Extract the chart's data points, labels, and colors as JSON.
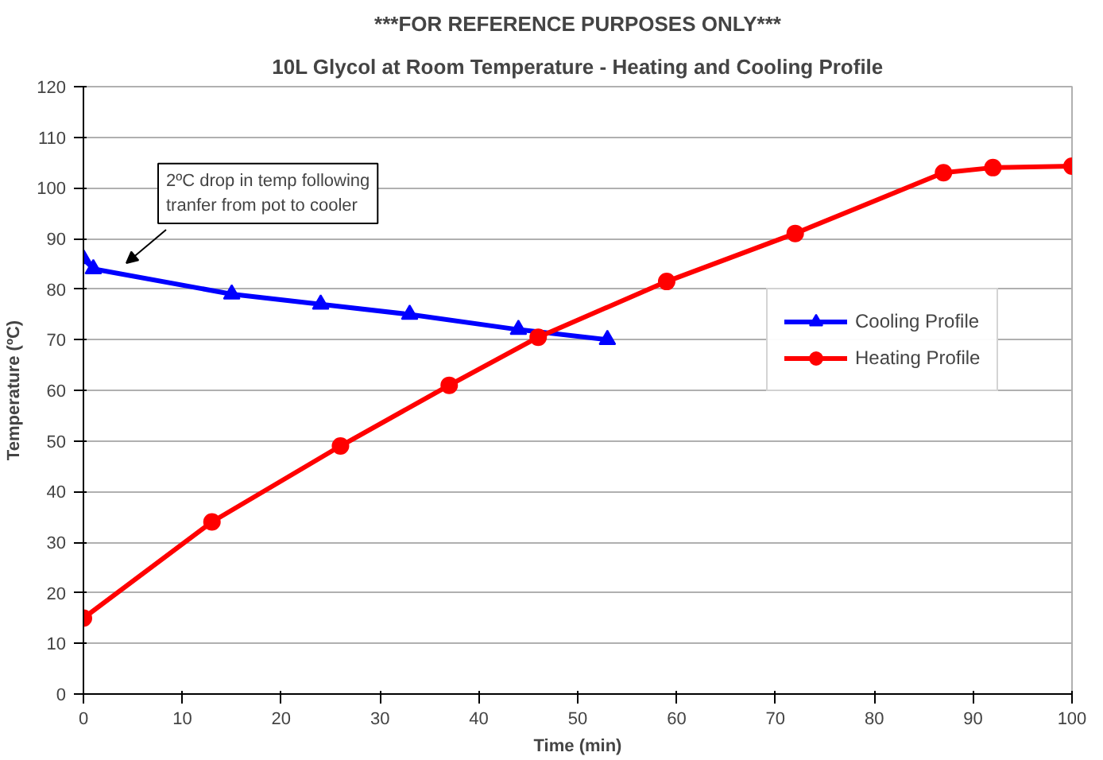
{
  "chart_data": {
    "type": "line",
    "title": "***FOR REFERENCE PURPOSES ONLY***",
    "subtitle": "10L Glycol at Room Temperature - Heating and Cooling Profile",
    "xlabel": "Time (min)",
    "ylabel": "Temperature (ºC)",
    "xlim": [
      0,
      100
    ],
    "xticks": [
      0,
      10,
      20,
      30,
      40,
      50,
      60,
      70,
      80,
      90,
      100
    ],
    "ylim": [
      0,
      120
    ],
    "yticks": [
      0,
      10,
      20,
      30,
      40,
      50,
      60,
      70,
      80,
      90,
      100,
      110,
      120
    ],
    "series": [
      {
        "name": "Cooling Profile",
        "color": "#0000ff",
        "marker": "triangle",
        "x": [
          0,
          1,
          15,
          24,
          33,
          44,
          53
        ],
        "values": [
          86,
          84,
          79,
          77,
          75,
          72,
          70
        ]
      },
      {
        "name": "Heating Profile",
        "color": "#ff0000",
        "marker": "circle",
        "x": [
          0,
          13,
          26,
          37,
          46,
          59,
          72,
          87,
          92,
          100
        ],
        "values": [
          15,
          34,
          49,
          61,
          70.5,
          81.5,
          91,
          103,
          104,
          104.3
        ]
      }
    ],
    "annotations": [
      "2ºC drop in temp following\ntranfer from pot to cooler"
    ],
    "grid": "y",
    "legend": "right"
  }
}
